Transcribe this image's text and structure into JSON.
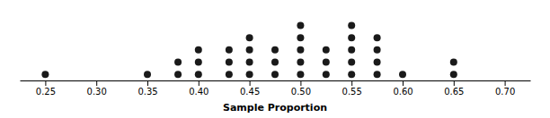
{
  "chart_data": {
    "type": "dot",
    "x": [
      0.25,
      0.35,
      0.38,
      0.4,
      0.43,
      0.45,
      0.475,
      0.5,
      0.525,
      0.55,
      0.575,
      0.6,
      0.65
    ],
    "values": [
      1,
      1,
      2,
      3,
      3,
      4,
      3,
      5,
      3,
      5,
      4,
      1,
      2
    ],
    "xlabel": "Sample Proportion",
    "color": "#1a1a1a",
    "xlim": [
      0.225,
      0.725
    ],
    "xticks": [
      0.25,
      {
        "value": 0.3,
        "label": "0.30"
      },
      0.35,
      {
        "value": 0.4,
        "label": "0.40"
      },
      0.45,
      {
        "value": 0.5,
        "label": "0.50"
      },
      0.55,
      {
        "value": 0.6,
        "label": "0.60"
      },
      0.65,
      {
        "value": 0.7,
        "label": "0.70"
      }
    ],
    "ylim": [
      0,
      6
    ],
    "grid": false,
    "tick_labels": "x"
  }
}
